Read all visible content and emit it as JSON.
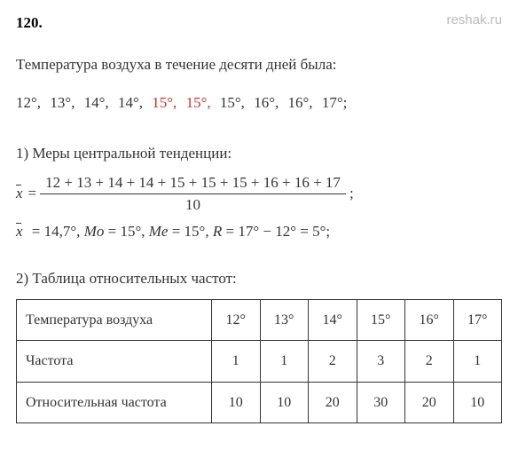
{
  "title": "120.",
  "watermark": "reshak.ru",
  "intro": "Температура воздуха в течение десяти дней была:",
  "data_values": [
    {
      "text": "12°,",
      "red": false
    },
    {
      "text": "13°,",
      "red": false
    },
    {
      "text": "14°,",
      "red": false
    },
    {
      "text": "14°,",
      "red": false
    },
    {
      "text": "15°,",
      "red": true
    },
    {
      "text": "15°,",
      "red": true
    },
    {
      "text": "15°,",
      "red": false
    },
    {
      "text": "16°,",
      "red": false
    },
    {
      "text": "16°,",
      "red": false
    },
    {
      "text": "17°;",
      "red": false
    }
  ],
  "section1_label": "1) Меры центральной тенденции:",
  "mean_equals": " = ",
  "mean_numerator": "12 + 13 + 14 + 14 + 15 + 15 + 15 + 16 + 16 + 17",
  "mean_denominator": "10",
  "mean_tail": " ;",
  "stats_prefix": " = 14,7°,   ",
  "mo_label": "Mo",
  "mo_value": " = 15°,   ",
  "me_label": "Me",
  "me_value": " = 15°,   ",
  "r_label": "R",
  "r_value": " = 17° − 12° = 5°;",
  "section2_label": "2) Таблица относительных частот:",
  "table": {
    "rows": [
      {
        "label": "Температура воздуха",
        "values": [
          "12°",
          "13°",
          "14°",
          "15°",
          "16°",
          "17°"
        ]
      },
      {
        "label": "Частота",
        "values": [
          "1",
          "1",
          "2",
          "3",
          "2",
          "1"
        ]
      },
      {
        "label": "Относительная частота",
        "values": [
          "10",
          "10",
          "20",
          "30",
          "20",
          "10"
        ]
      }
    ]
  },
  "colors": {
    "text": "#333333",
    "red": "#d32f2f",
    "watermark": "#bbbbbb",
    "border": "#333333",
    "background": "#ffffff"
  }
}
